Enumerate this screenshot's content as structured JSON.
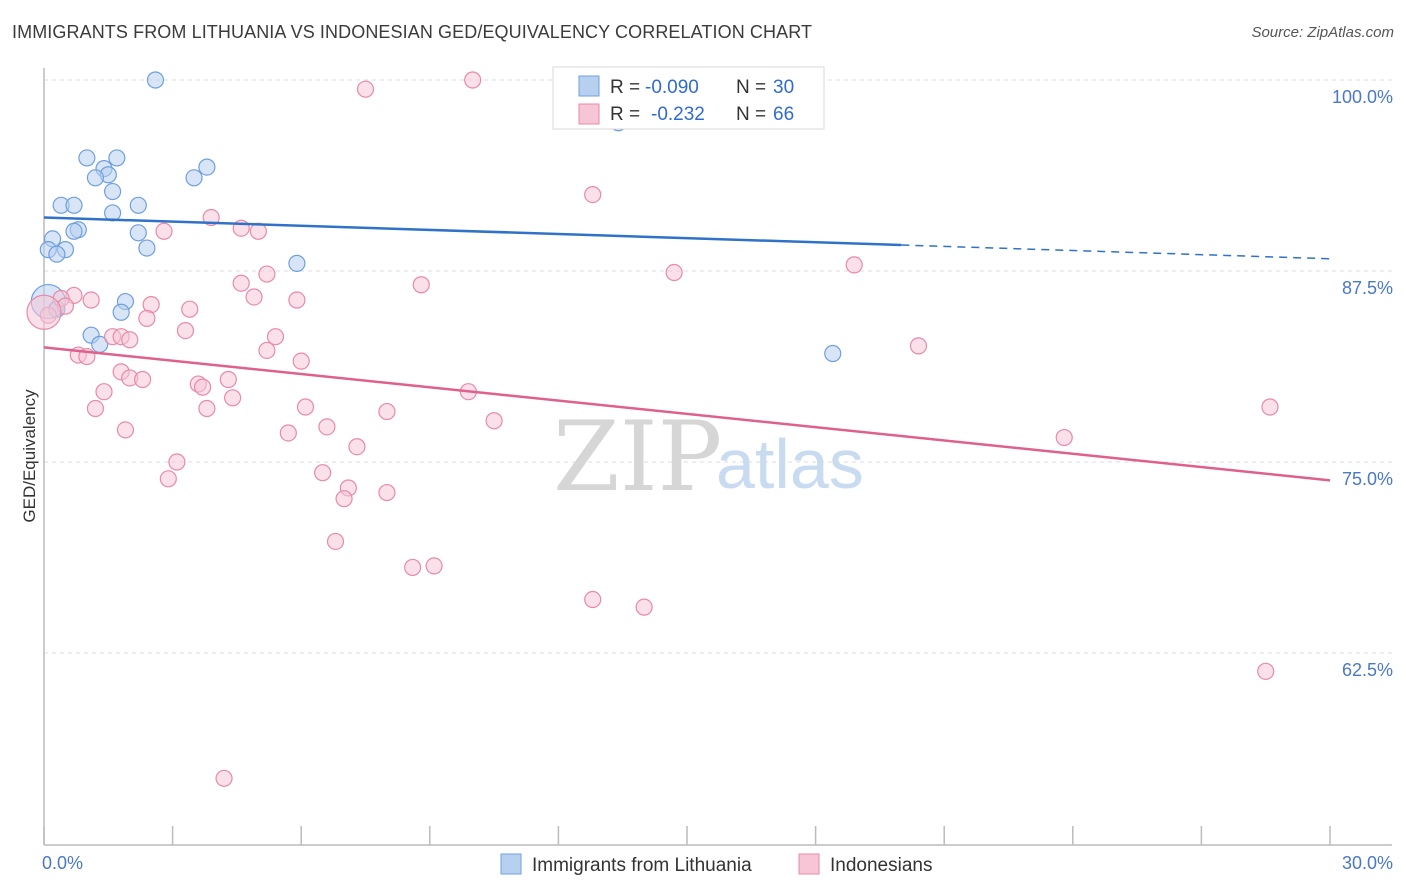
{
  "chart_data": {
    "type": "scatter",
    "title": "IMMIGRANTS FROM LITHUANIA VS INDONESIAN GED/EQUIVALENCY CORRELATION CHART",
    "source": "Source: ZipAtlas.com",
    "xlabel": "",
    "ylabel": "GED/Equivalency",
    "xlim": [
      0,
      30
    ],
    "ylim": [
      50,
      100
    ],
    "x_tick_labels": [
      "0.0%",
      "30.0%"
    ],
    "y_ticks": [
      62.5,
      75.0,
      87.5,
      100.0
    ],
    "y_tick_labels": [
      "62.5%",
      "75.0%",
      "87.5%",
      "100.0%"
    ],
    "grid": true,
    "watermark": {
      "zip": "ZIP",
      "atlas": "atlas"
    },
    "legend": {
      "rows": [
        {
          "r_label": "R =",
          "r_value": "-0.090",
          "n_label": "N =",
          "n_value": "30"
        },
        {
          "r_label": "R =",
          "r_value": "-0.232",
          "n_label": "N =",
          "n_value": "66"
        }
      ]
    },
    "series": [
      {
        "name": "Immigrants from Lithuania",
        "color": "#6f9fe0",
        "fill": "#b8d0f0",
        "line_color": "#2f72c8",
        "trend": {
          "x": [
            0,
            20.0
          ],
          "y": [
            91.0,
            89.2
          ],
          "dashed_to_x": 30,
          "dashed_y_end": 88.3
        },
        "points": [
          [
            2.6,
            100.0
          ],
          [
            1.0,
            94.9
          ],
          [
            1.7,
            94.9
          ],
          [
            1.4,
            94.2
          ],
          [
            1.5,
            93.8
          ],
          [
            1.2,
            93.6
          ],
          [
            3.8,
            94.3
          ],
          [
            3.5,
            93.6
          ],
          [
            1.6,
            92.7
          ],
          [
            0.4,
            91.8
          ],
          [
            0.7,
            91.8
          ],
          [
            2.2,
            91.8
          ],
          [
            1.6,
            91.3
          ],
          [
            0.8,
            90.2
          ],
          [
            0.7,
            90.1
          ],
          [
            2.2,
            90.0
          ],
          [
            0.2,
            89.6
          ],
          [
            2.4,
            89.0
          ],
          [
            0.1,
            88.9
          ],
          [
            0.5,
            88.9
          ],
          [
            0.3,
            88.6
          ],
          [
            5.9,
            88.0
          ],
          [
            0.1,
            85.5
          ],
          [
            1.9,
            85.5
          ],
          [
            1.8,
            84.8
          ],
          [
            0.3,
            85.0
          ],
          [
            1.1,
            83.3
          ],
          [
            1.3,
            82.7
          ],
          [
            18.4,
            82.1
          ],
          [
            13.4,
            97.2
          ]
        ]
      },
      {
        "name": "Indonesians",
        "color": "#e88aa8",
        "fill": "#f6c6d6",
        "line_color": "#e0608c",
        "trend": {
          "x": [
            0,
            30
          ],
          "y": [
            82.5,
            73.8
          ]
        },
        "points": [
          [
            7.5,
            99.4
          ],
          [
            10.0,
            100.0
          ],
          [
            12.8,
            92.5
          ],
          [
            3.9,
            91.0
          ],
          [
            4.6,
            90.3
          ],
          [
            5.0,
            90.1
          ],
          [
            2.8,
            90.1
          ],
          [
            18.9,
            87.9
          ],
          [
            14.7,
            87.4
          ],
          [
            5.2,
            87.3
          ],
          [
            4.6,
            86.7
          ],
          [
            8.8,
            86.6
          ],
          [
            0.7,
            85.9
          ],
          [
            1.1,
            85.6
          ],
          [
            4.9,
            85.8
          ],
          [
            0.4,
            85.7
          ],
          [
            5.9,
            85.6
          ],
          [
            0.5,
            85.2
          ],
          [
            2.5,
            85.3
          ],
          [
            3.4,
            85.0
          ],
          [
            2.4,
            84.4
          ],
          [
            0.1,
            84.6
          ],
          [
            3.3,
            83.6
          ],
          [
            1.6,
            83.2
          ],
          [
            1.8,
            83.2
          ],
          [
            5.4,
            83.2
          ],
          [
            2.0,
            83.0
          ],
          [
            5.2,
            82.3
          ],
          [
            20.4,
            82.6
          ],
          [
            0.8,
            82.0
          ],
          [
            1.0,
            81.9
          ],
          [
            6.0,
            81.6
          ],
          [
            1.8,
            80.9
          ],
          [
            2.0,
            80.5
          ],
          [
            2.3,
            80.4
          ],
          [
            4.3,
            80.4
          ],
          [
            3.6,
            80.1
          ],
          [
            3.7,
            79.9
          ],
          [
            1.4,
            79.6
          ],
          [
            9.9,
            79.6
          ],
          [
            4.4,
            79.2
          ],
          [
            28.6,
            78.6
          ],
          [
            1.2,
            78.5
          ],
          [
            3.8,
            78.5
          ],
          [
            6.1,
            78.6
          ],
          [
            8.0,
            78.3
          ],
          [
            10.5,
            77.7
          ],
          [
            1.9,
            77.1
          ],
          [
            6.6,
            77.3
          ],
          [
            5.7,
            76.9
          ],
          [
            23.8,
            76.6
          ],
          [
            7.3,
            76.0
          ],
          [
            3.1,
            75.0
          ],
          [
            6.5,
            74.3
          ],
          [
            2.9,
            73.9
          ],
          [
            7.1,
            73.3
          ],
          [
            8.0,
            73.0
          ],
          [
            7.0,
            72.6
          ],
          [
            6.8,
            69.8
          ],
          [
            9.1,
            68.2
          ],
          [
            8.6,
            68.1
          ],
          [
            12.8,
            66.0
          ],
          [
            14.0,
            65.5
          ],
          [
            28.5,
            61.3
          ],
          [
            4.2,
            54.3
          ],
          [
            0.0,
            84.8
          ]
        ]
      }
    ]
  }
}
